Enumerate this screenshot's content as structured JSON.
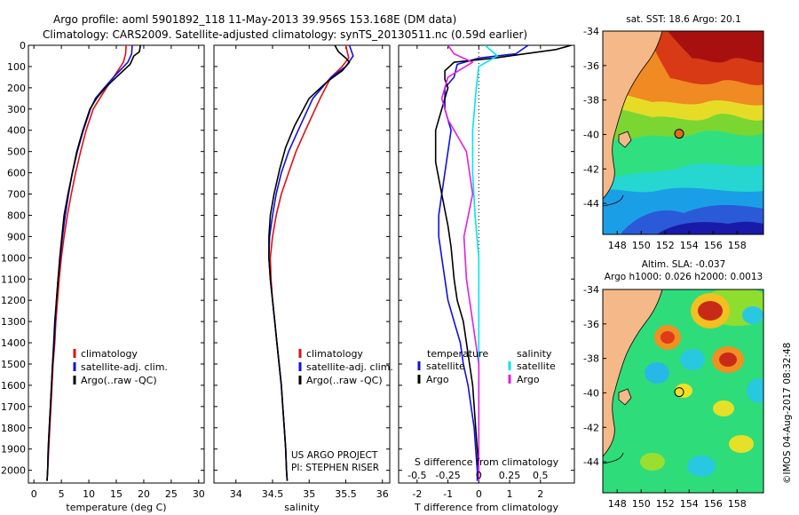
{
  "figure": {
    "title_line1": "Argo profile: aoml 5901892_118 11-May-2013 39.956S 153.168E (DM data)",
    "title_line2": "Climatology: CARS2009. Satellite-adjusted climatology: synTS_20130511.nc (0.59d earlier)",
    "credit": "US ARGO PROJECT",
    "pi": "PI: STEPHEN RISER",
    "footer": "©IMOS 04-Aug-2017 08:32:48"
  },
  "colors": {
    "climatology": "#e01010",
    "satellite": "#1010e0",
    "argo": "#000000",
    "salinity_satellite": "#00e5ee",
    "salinity_argo": "#e020e0",
    "land": "#f5b888"
  },
  "chart_data": [
    {
      "type": "line",
      "panel": "temperature",
      "xlabel": "temperature (deg C)",
      "xlim": [
        -1,
        31
      ],
      "xticks": [
        0,
        5,
        10,
        15,
        20,
        25,
        30
      ],
      "ylim": [
        2060,
        0
      ],
      "yticks": [
        0,
        100,
        200,
        300,
        400,
        500,
        600,
        700,
        800,
        900,
        1000,
        1100,
        1200,
        1300,
        1400,
        1500,
        1600,
        1700,
        1800,
        1900,
        2000
      ],
      "legend": [
        "climatology",
        "satellite-adj. clim.",
        "Argo(..raw -QC)"
      ],
      "series": [
        {
          "name": "climatology",
          "color_key": "climatology",
          "points": [
            [
              16.8,
              0
            ],
            [
              16.7,
              40
            ],
            [
              16.3,
              80
            ],
            [
              14.5,
              150
            ],
            [
              13.2,
              200
            ],
            [
              12,
              250
            ],
            [
              10.8,
              300
            ],
            [
              9.5,
              400
            ],
            [
              8.5,
              500
            ],
            [
              7.6,
              600
            ],
            [
              6.8,
              700
            ],
            [
              6.1,
              800
            ],
            [
              5.5,
              900
            ],
            [
              5,
              1000
            ],
            [
              4.6,
              1100
            ],
            [
              4.3,
              1200
            ],
            [
              4,
              1300
            ],
            [
              3.8,
              1400
            ],
            [
              3.5,
              1500
            ],
            [
              3.3,
              1600
            ],
            [
              3.1,
              1700
            ],
            [
              2.9,
              1800
            ],
            [
              2.7,
              1900
            ],
            [
              2.5,
              2000
            ],
            [
              2.4,
              2050
            ]
          ]
        },
        {
          "name": "satellite-adj. clim.",
          "color_key": "satellite",
          "points": [
            [
              17.9,
              0
            ],
            [
              17.8,
              40
            ],
            [
              17.1,
              80
            ],
            [
              14.5,
              150
            ],
            [
              12.8,
              200
            ],
            [
              11.2,
              250
            ],
            [
              10.3,
              300
            ],
            [
              9,
              400
            ],
            [
              7.9,
              500
            ],
            [
              7,
              600
            ],
            [
              6.3,
              700
            ],
            [
              5.7,
              800
            ],
            [
              5.2,
              900
            ],
            [
              4.8,
              1000
            ],
            [
              4.4,
              1100
            ],
            [
              4.1,
              1200
            ],
            [
              3.9,
              1300
            ],
            [
              3.7,
              1400
            ],
            [
              3.4,
              1500
            ],
            [
              3.2,
              1600
            ],
            [
              3,
              1700
            ],
            [
              2.8,
              1800
            ],
            [
              2.6,
              1900
            ],
            [
              2.5,
              2000
            ],
            [
              2.4,
              2050
            ]
          ]
        },
        {
          "name": "Argo(..raw -QC)",
          "color_key": "argo",
          "points": [
            [
              19.4,
              0
            ],
            [
              19.2,
              30
            ],
            [
              18.2,
              50
            ],
            [
              17.5,
              90
            ],
            [
              15,
              150
            ],
            [
              13,
              200
            ],
            [
              11.4,
              250
            ],
            [
              10.2,
              300
            ],
            [
              8.9,
              400
            ],
            [
              7.8,
              500
            ],
            [
              7,
              600
            ],
            [
              6.2,
              700
            ],
            [
              5.5,
              800
            ],
            [
              5.1,
              900
            ],
            [
              4.7,
              1000
            ],
            [
              4.4,
              1100
            ],
            [
              4.1,
              1200
            ],
            [
              3.8,
              1300
            ],
            [
              3.6,
              1400
            ],
            [
              3.4,
              1500
            ],
            [
              3.2,
              1600
            ],
            [
              3,
              1700
            ],
            [
              2.8,
              1800
            ],
            [
              2.6,
              1900
            ],
            [
              2.5,
              2000
            ],
            [
              2.4,
              2050
            ]
          ]
        }
      ]
    },
    {
      "type": "line",
      "panel": "salinity",
      "xlabel": "salinity",
      "xlim": [
        33.7,
        36.1
      ],
      "xticks": [
        34,
        34.5,
        35,
        35.5,
        36
      ],
      "xtick_labels": [
        "34",
        "34.5",
        "35",
        "35.5",
        "36"
      ],
      "ylim": [
        2060,
        0
      ],
      "legend": [
        "climatology",
        "satellite-adj. clim.",
        "Argo(..raw -QC)"
      ],
      "series": [
        {
          "name": "climatology",
          "color_key": "climatology",
          "points": [
            [
              35.5,
              0
            ],
            [
              35.54,
              60
            ],
            [
              35.45,
              100
            ],
            [
              35.3,
              150
            ],
            [
              35.15,
              250
            ],
            [
              34.95,
              400
            ],
            [
              34.82,
              500
            ],
            [
              34.72,
              600
            ],
            [
              34.62,
              700
            ],
            [
              34.55,
              800
            ],
            [
              34.5,
              900
            ],
            [
              34.47,
              1000
            ],
            [
              34.48,
              1100
            ],
            [
              34.5,
              1200
            ],
            [
              34.53,
              1300
            ],
            [
              34.56,
              1400
            ],
            [
              34.59,
              1500
            ],
            [
              34.62,
              1600
            ],
            [
              34.64,
              1700
            ],
            [
              34.66,
              1800
            ],
            [
              34.68,
              1900
            ],
            [
              34.69,
              2000
            ],
            [
              34.7,
              2050
            ]
          ]
        },
        {
          "name": "satellite-adj. clim.",
          "color_key": "satellite",
          "points": [
            [
              35.55,
              0
            ],
            [
              35.6,
              50
            ],
            [
              35.5,
              100
            ],
            [
              35.3,
              150
            ],
            [
              35.05,
              250
            ],
            [
              34.85,
              400
            ],
            [
              34.72,
              500
            ],
            [
              34.62,
              600
            ],
            [
              34.55,
              700
            ],
            [
              34.5,
              800
            ],
            [
              34.46,
              900
            ],
            [
              34.45,
              1000
            ],
            [
              34.47,
              1100
            ],
            [
              34.5,
              1200
            ],
            [
              34.53,
              1300
            ],
            [
              34.56,
              1400
            ],
            [
              34.59,
              1500
            ],
            [
              34.62,
              1600
            ],
            [
              34.64,
              1700
            ],
            [
              34.66,
              1800
            ],
            [
              34.68,
              1900
            ],
            [
              34.69,
              2000
            ],
            [
              34.7,
              2050
            ]
          ]
        },
        {
          "name": "Argo(..raw -QC)",
          "color_key": "argo",
          "points": [
            [
              35.35,
              0
            ],
            [
              35.4,
              30
            ],
            [
              35.5,
              60
            ],
            [
              35.55,
              80
            ],
            [
              35.45,
              120
            ],
            [
              35.25,
              170
            ],
            [
              35.0,
              250
            ],
            [
              34.8,
              380
            ],
            [
              34.68,
              480
            ],
            [
              34.6,
              580
            ],
            [
              34.52,
              700
            ],
            [
              34.47,
              800
            ],
            [
              34.45,
              900
            ],
            [
              34.45,
              1000
            ],
            [
              34.47,
              1100
            ],
            [
              34.5,
              1200
            ],
            [
              34.53,
              1300
            ],
            [
              34.56,
              1400
            ],
            [
              34.59,
              1500
            ],
            [
              34.62,
              1600
            ],
            [
              34.64,
              1700
            ],
            [
              34.66,
              1800
            ],
            [
              34.68,
              1900
            ],
            [
              34.69,
              2000
            ],
            [
              34.7,
              2050
            ]
          ]
        }
      ]
    },
    {
      "type": "line",
      "panel": "difference",
      "xlabel": "T difference from climatology",
      "xlim": [
        -2.6,
        3.1
      ],
      "xticks": [
        -2,
        -1,
        0,
        1,
        2
      ],
      "top_axis_label": "S difference from climatology",
      "s_ticks": [
        -0.5,
        -0.25,
        0,
        0.25,
        0.5
      ],
      "s_tick_labels": [
        "-0.5",
        "-0.25",
        "0",
        "0.25",
        "0.5"
      ],
      "s_scale": 0.25,
      "legend_temperature_title": "temperature",
      "legend_salinity_title": "salinity",
      "legend_temperature": [
        "satellite",
        "Argo"
      ],
      "legend_salinity": [
        "satellite",
        "Argo"
      ],
      "series": [
        {
          "name": "temperature satellite",
          "color_key": "satellite",
          "points": [
            [
              1.6,
              0
            ],
            [
              1.2,
              40
            ],
            [
              0,
              60
            ],
            [
              -0.7,
              90
            ],
            [
              -0.8,
              150
            ],
            [
              -1.1,
              200
            ],
            [
              -1.1,
              300
            ],
            [
              -0.9,
              400
            ],
            [
              -1.1,
              600
            ],
            [
              -1.2,
              700
            ],
            [
              -1.3,
              800
            ],
            [
              -1.3,
              900
            ],
            [
              -1.2,
              1000
            ],
            [
              -1.1,
              1100
            ],
            [
              -1,
              1200
            ],
            [
              -0.8,
              1300
            ],
            [
              -0.6,
              1400
            ],
            [
              -0.5,
              1500
            ],
            [
              -0.35,
              1600
            ],
            [
              -0.25,
              1700
            ],
            [
              -0.15,
              1800
            ],
            [
              -0.1,
              1900
            ],
            [
              -0.05,
              2000
            ],
            [
              -0.05,
              2050
            ]
          ]
        },
        {
          "name": "temperature Argo",
          "color_key": "argo",
          "points": [
            [
              3.0,
              0
            ],
            [
              2.5,
              20
            ],
            [
              1.5,
              40
            ],
            [
              0.5,
              60
            ],
            [
              -0.8,
              80
            ],
            [
              -1.1,
              120
            ],
            [
              -1.1,
              160
            ],
            [
              -1,
              200
            ],
            [
              -1.2,
              300
            ],
            [
              -1.4,
              400
            ],
            [
              -1.4,
              550
            ],
            [
              -1.2,
              700
            ],
            [
              -1,
              850
            ],
            [
              -0.9,
              950
            ],
            [
              -0.8,
              1100
            ],
            [
              -0.7,
              1200
            ],
            [
              -0.5,
              1300
            ],
            [
              -0.4,
              1400
            ],
            [
              -0.3,
              1500
            ],
            [
              -0.2,
              1600
            ],
            [
              -0.15,
              1700
            ],
            [
              -0.1,
              1800
            ],
            [
              -0.05,
              1900
            ],
            [
              0,
              2000
            ],
            [
              0,
              2050
            ]
          ]
        },
        {
          "name": "salinity satellite",
          "color_key": "salinity_satellite",
          "points": [
            [
              0.05,
              0
            ],
            [
              0.15,
              50
            ],
            [
              0,
              100
            ],
            [
              -0.02,
              200
            ],
            [
              -0.05,
              400
            ],
            [
              -0.05,
              600
            ],
            [
              -0.03,
              800
            ],
            [
              0,
              1000
            ],
            [
              0,
              1200
            ],
            [
              0,
              1400
            ],
            [
              0,
              1600
            ],
            [
              0,
              1800
            ],
            [
              0,
              2050
            ]
          ]
        },
        {
          "name": "salinity Argo",
          "color_key": "salinity_argo",
          "points": [
            [
              -0.25,
              0
            ],
            [
              -0.2,
              40
            ],
            [
              -0.05,
              80
            ],
            [
              -0.25,
              150
            ],
            [
              -0.3,
              250
            ],
            [
              -0.25,
              350
            ],
            [
              -0.1,
              500
            ],
            [
              -0.05,
              700
            ],
            [
              -0.12,
              900
            ],
            [
              -0.1,
              1100
            ],
            [
              -0.05,
              1300
            ],
            [
              0,
              1500
            ],
            [
              0,
              1700
            ],
            [
              0,
              2050
            ]
          ]
        }
      ]
    },
    {
      "type": "heatmap",
      "panel": "map_sst",
      "title": "sat. SST: 18.6 Argo: 20.1",
      "xlim": [
        146.8,
        160.2
      ],
      "ylim": [
        -45.8,
        -34
      ],
      "xticks": [
        148,
        150,
        152,
        154,
        156,
        158
      ],
      "yticks": [
        -34,
        -36,
        -38,
        -40,
        -42,
        -44
      ],
      "marker": {
        "lon": 153.168,
        "lat": -39.956
      }
    },
    {
      "type": "heatmap",
      "panel": "map_sla",
      "title_line1": "Altim. SLA: -0.037",
      "title_line2": "Argo h1000: 0.026 h2000: 0.0013",
      "xlim": [
        146.8,
        160.2
      ],
      "ylim": [
        -45.8,
        -34
      ],
      "xticks": [
        148,
        150,
        152,
        154,
        156,
        158
      ],
      "yticks": [
        -34,
        -36,
        -38,
        -40,
        -42,
        -44
      ],
      "marker": {
        "lon": 153.168,
        "lat": -39.956
      }
    }
  ]
}
